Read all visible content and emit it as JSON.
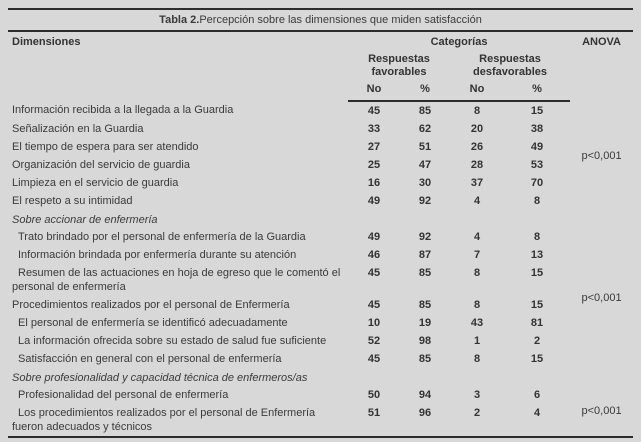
{
  "page": {
    "background": "#d8d8d8",
    "text_color": "#3a3a3a",
    "rule_color": "#2c2c2c"
  },
  "table": {
    "title": {
      "bold": "Tabla 2.",
      "rest": "Percepción sobre las dimensiones que miden satisfacción"
    },
    "header": {
      "dimensions": "Dimensiones",
      "categories": "Categorías",
      "anova": "ANOVA",
      "favorable": "Respuestas favorables",
      "unfavorable": "Respuestas desfavorables",
      "count_label": "No",
      "percent_label": "%"
    },
    "rows": [
      {
        "type": "item",
        "indent": false,
        "label": "Información recibida a la llegada a la Guardia",
        "values": [
          45,
          85,
          8,
          15
        ],
        "anova": {
          "text": "p<0,001",
          "span": 6
        }
      },
      {
        "type": "item",
        "indent": false,
        "label": "Señalización en la Guardia",
        "values": [
          33,
          62,
          20,
          38
        ]
      },
      {
        "type": "item",
        "indent": false,
        "label": "El tiempo de espera para ser atendido",
        "values": [
          27,
          51,
          26,
          49
        ]
      },
      {
        "type": "item",
        "indent": false,
        "label": "Organización del servicio de guardia",
        "values": [
          25,
          47,
          28,
          53
        ]
      },
      {
        "type": "item",
        "indent": false,
        "label": "Limpieza en el servicio de guardia",
        "values": [
          16,
          30,
          37,
          70
        ]
      },
      {
        "type": "item",
        "indent": false,
        "label": "El respeto a su intimidad",
        "values": [
          49,
          92,
          4,
          8
        ]
      },
      {
        "type": "section",
        "label": "Sobre accionar de enfermería",
        "anova": {
          "text": "",
          "span": 1
        }
      },
      {
        "type": "item",
        "indent": true,
        "label": "Trato brindado por el personal de enfermería de la Guardia",
        "values": [
          49,
          92,
          4,
          8
        ],
        "anova": {
          "text": "p<0,001",
          "span": 7
        }
      },
      {
        "type": "item",
        "indent": true,
        "label": "Información brindada por enfermería durante su atención",
        "values": [
          46,
          87,
          7,
          13
        ]
      },
      {
        "type": "item",
        "indent": true,
        "label": "Resumen de las actuaciones en hoja de egreso que le comentó el personal de enfermería",
        "values": [
          45,
          85,
          8,
          15
        ]
      },
      {
        "type": "item",
        "indent": false,
        "label": "Procedimientos realizados por el personal de Enfermería",
        "values": [
          45,
          85,
          8,
          15
        ]
      },
      {
        "type": "item",
        "indent": true,
        "label": "El personal de enfermería se identificó adecuadamente",
        "values": [
          10,
          19,
          43,
          81
        ]
      },
      {
        "type": "item",
        "indent": true,
        "label": "La información ofrecida sobre su estado de salud fue suficiente",
        "values": [
          52,
          98,
          1,
          2
        ]
      },
      {
        "type": "item",
        "indent": true,
        "label": "Satisfacción en general con el personal de enfermería",
        "values": [
          45,
          85,
          8,
          15
        ]
      },
      {
        "type": "section",
        "label": "Sobre profesionalidad y capacidad técnica de enfermeros/as",
        "anova": {
          "text": "",
          "span": 1
        }
      },
      {
        "type": "item",
        "indent": true,
        "label": "Profesionalidad del personal de enfermería",
        "values": [
          50,
          94,
          3,
          6
        ],
        "anova": {
          "text": "p<0,001",
          "span": 2
        }
      },
      {
        "type": "item",
        "indent": true,
        "label": "Los procedimientos realizados por el personal de Enfermería fueron adecuados y técnicos",
        "values": [
          51,
          96,
          2,
          4
        ]
      }
    ]
  }
}
